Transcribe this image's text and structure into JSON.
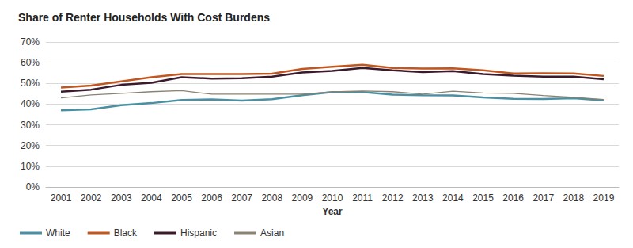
{
  "chart_data": {
    "type": "line",
    "title": "Share of Renter Households With Cost Burdens",
    "x_label": "Year",
    "categories": [
      "2001",
      "2002",
      "2003",
      "2004",
      "2005",
      "2006",
      "2007",
      "2008",
      "2009",
      "2010",
      "2011",
      "2012",
      "2013",
      "2014",
      "2015",
      "2016",
      "2017",
      "2018",
      "2019"
    ],
    "series": [
      {
        "name": "White",
        "color": "#4b8fa3",
        "values": [
          37,
          37.5,
          39.5,
          40.5,
          42,
          42.3,
          41.7,
          42.4,
          44.3,
          45.8,
          45.8,
          44.6,
          44.3,
          44.2,
          43.2,
          42.6,
          42.5,
          42.8,
          41.8
        ]
      },
      {
        "name": "Black",
        "color": "#c1561f",
        "values": [
          48,
          49,
          51,
          53,
          54.5,
          54.5,
          54.5,
          54.7,
          57,
          58,
          59,
          57.5,
          57.2,
          57.3,
          56.3,
          54.8,
          54.9,
          54.8,
          53.6
        ]
      },
      {
        "name": "Hispanic",
        "color": "#3b1b2b",
        "values": [
          46,
          47,
          49.3,
          50.3,
          53,
          52.3,
          52.5,
          53.3,
          55.3,
          56,
          57.5,
          56.3,
          55.5,
          55.9,
          54.5,
          53.7,
          53.3,
          53.3,
          52
        ]
      },
      {
        "name": "Asian",
        "color": "#8a8272",
        "values": [
          43,
          44.4,
          45.2,
          46,
          46.5,
          44.8,
          44.8,
          44.8,
          44.8,
          45.9,
          46.3,
          46,
          44.8,
          46.2,
          45.4,
          45.2,
          44.1,
          43.3,
          42.2
        ]
      }
    ],
    "ylim": [
      0,
      70
    ],
    "yticks": [
      {
        "value": 0,
        "label": "0%"
      },
      {
        "value": 10,
        "label": "10%"
      },
      {
        "value": 20,
        "label": "20%"
      },
      {
        "value": 30,
        "label": "30%"
      },
      {
        "value": 40,
        "label": "40%"
      },
      {
        "value": 50,
        "label": "50%"
      },
      {
        "value": 60,
        "label": "60%"
      },
      {
        "value": 70,
        "label": "70%"
      }
    ],
    "grid": true,
    "legend": "bottom-left"
  }
}
